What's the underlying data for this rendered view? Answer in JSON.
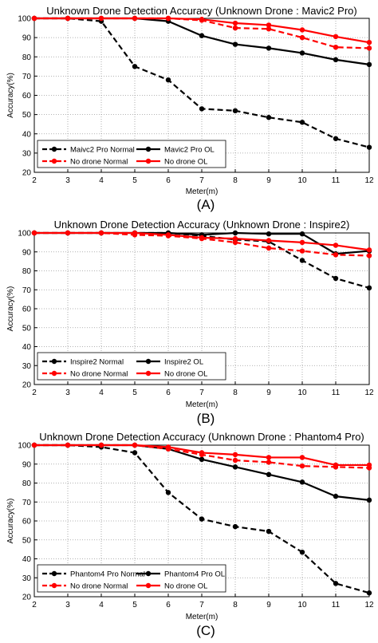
{
  "chart_data": [
    {
      "type": "line",
      "title": "Unknown Drone Detection Accuracy (Unknown Drone : Mavic2 Pro)",
      "xlabel": "Meter(m)",
      "ylabel": "Accuracy(%)",
      "panel_label": "(A)",
      "x": [
        2,
        3,
        4,
        5,
        6,
        7,
        8,
        9,
        10,
        11,
        12
      ],
      "xlim": [
        2,
        12
      ],
      "ylim": [
        20,
        100
      ],
      "yticks": [
        20,
        30,
        40,
        50,
        60,
        70,
        80,
        90,
        100
      ],
      "grid": true,
      "legend_position": "bottom-left",
      "series": [
        {
          "name": "Maivc2 Pro Normal",
          "color": "#000000",
          "dash": "dashed",
          "values": [
            100,
            100,
            98.5,
            75,
            68,
            53,
            52,
            48.5,
            46,
            37.5,
            33
          ]
        },
        {
          "name": "Mavic2 Pro OL",
          "color": "#000000",
          "dash": "solid",
          "values": [
            100,
            100,
            100,
            100,
            98.5,
            91,
            86.5,
            84.5,
            82,
            78.5,
            76
          ]
        },
        {
          "name": "No drone Normal",
          "color": "#ff0000",
          "dash": "dashed",
          "values": [
            100,
            100,
            100,
            100,
            100,
            99,
            95,
            94.5,
            90,
            85,
            84.5
          ]
        },
        {
          "name": "No drone OL",
          "color": "#ff0000",
          "dash": "solid",
          "values": [
            100,
            100,
            100,
            100,
            100,
            99.5,
            97.5,
            96.5,
            94,
            90.5,
            87.5
          ]
        }
      ]
    },
    {
      "type": "line",
      "title": "Unknown Drone Detection Accuracy (Unknown Drone : Inspire2)",
      "xlabel": "Meter(m)",
      "ylabel": "Accuracy(%)",
      "panel_label": "(B)",
      "x": [
        2,
        3,
        4,
        5,
        6,
        7,
        8,
        9,
        10,
        11,
        12
      ],
      "xlim": [
        2,
        12
      ],
      "ylim": [
        20,
        100
      ],
      "yticks": [
        20,
        30,
        40,
        50,
        60,
        70,
        80,
        90,
        100
      ],
      "grid": true,
      "legend_position": "bottom-left",
      "series": [
        {
          "name": "Inspire2 Normal",
          "color": "#000000",
          "dash": "dashed",
          "values": [
            100,
            100,
            100,
            100,
            100,
            98.5,
            96.5,
            95.5,
            85.5,
            76,
            71
          ]
        },
        {
          "name": "Inspire2 OL",
          "color": "#000000",
          "dash": "solid",
          "values": [
            100,
            100,
            100,
            100,
            100,
            99,
            100,
            99.5,
            99.5,
            89,
            90.5
          ]
        },
        {
          "name": "No drone Normal",
          "color": "#ff0000",
          "dash": "dashed",
          "values": [
            100,
            100,
            100,
            99,
            98.5,
            97,
            95,
            92,
            90.5,
            88.5,
            88
          ]
        },
        {
          "name": "No drone OL",
          "color": "#ff0000",
          "dash": "solid",
          "values": [
            100,
            100,
            100,
            100,
            99,
            97.5,
            97,
            96,
            95,
            93.5,
            91
          ]
        }
      ]
    },
    {
      "type": "line",
      "title": "Unknown Drone Detection Accuracy (Unknown Drone : Phantom4 Pro)",
      "xlabel": "Meter(m)",
      "ylabel": "Accuracy(%)",
      "panel_label": "(C)",
      "x": [
        2,
        3,
        4,
        5,
        6,
        7,
        8,
        9,
        10,
        11,
        12
      ],
      "xlim": [
        2,
        12
      ],
      "ylim": [
        20,
        100
      ],
      "yticks": [
        20,
        30,
        40,
        50,
        60,
        70,
        80,
        90,
        100
      ],
      "grid": true,
      "legend_position": "bottom-left",
      "series": [
        {
          "name": "Phantom4 Pro Normal",
          "color": "#000000",
          "dash": "dashed",
          "values": [
            100,
            100,
            99,
            96,
            75,
            61,
            57,
            54.5,
            43.5,
            27,
            22
          ]
        },
        {
          "name": "Phantom4 Pro OL",
          "color": "#000000",
          "dash": "solid",
          "values": [
            100,
            100,
            100,
            100,
            98,
            92.5,
            88.5,
            84.5,
            80.5,
            73,
            71
          ]
        },
        {
          "name": "No drone Normal",
          "color": "#ff0000",
          "dash": "dashed",
          "values": [
            100,
            100,
            100,
            100,
            98,
            95,
            92,
            91,
            89,
            88.5,
            88
          ]
        },
        {
          "name": "No drone OL",
          "color": "#ff0000",
          "dash": "solid",
          "values": [
            100,
            100,
            100,
            100,
            99,
            96,
            95,
            93.5,
            93.5,
            89.5,
            89.5
          ]
        }
      ]
    }
  ]
}
